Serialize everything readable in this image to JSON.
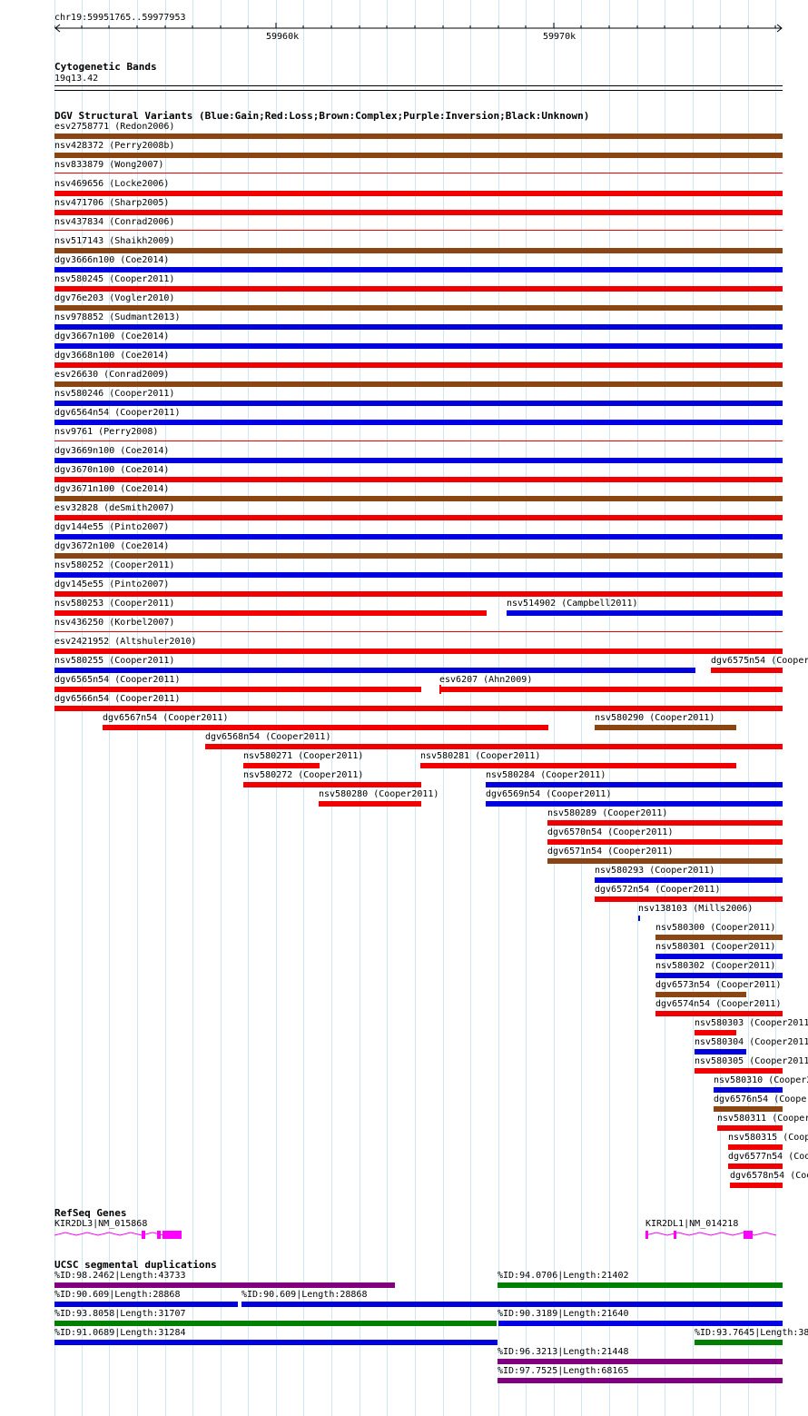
{
  "ruler": {
    "position": "chr19:59951765..59977953",
    "tick_labels": [
      "59960k",
      "59970k"
    ]
  },
  "cytoband": {
    "title": "Cytogenetic Bands",
    "band": "19q13.42"
  },
  "dgv": {
    "title": "DGV Structural Variants (Blue:Gain;Red:Loss;Brown:Complex;Purple:Inversion;Black:Unknown)",
    "colors": {
      "gain": "#0000e0",
      "loss": "#f00000",
      "complex": "#8b4513",
      "inversion": "#800080",
      "unknown": "#000000"
    },
    "features": [
      {
        "label": "esv2758771 (Redon2006)",
        "type": "complex"
      },
      {
        "label": "nsv428372 (Perry2008b)",
        "type": "complex"
      },
      {
        "label": "nsv833879 (Wong2007)",
        "type": "loss"
      },
      {
        "label": "nsv469656 (Locke2006)",
        "type": "loss"
      },
      {
        "label": "nsv471706 (Sharp2005)",
        "type": "loss"
      },
      {
        "label": "nsv437834 (Conrad2006)",
        "type": "loss"
      },
      {
        "label": "nsv517143 (Shaikh2009)",
        "type": "complex"
      },
      {
        "label": "dgv3666n100 (Coe2014)",
        "type": "gain"
      },
      {
        "label": "nsv580245 (Cooper2011)",
        "type": "loss"
      },
      {
        "label": "dgv76e203 (Vogler2010)",
        "type": "complex"
      },
      {
        "label": "nsv978852 (Sudmant2013)",
        "type": "gain"
      },
      {
        "label": "dgv3667n100 (Coe2014)",
        "type": "gain"
      },
      {
        "label": "dgv3668n100 (Coe2014)",
        "type": "loss"
      },
      {
        "label": "esv26630 (Conrad2009)",
        "type": "complex"
      },
      {
        "label": "nsv580246 (Cooper2011)",
        "type": "gain"
      },
      {
        "label": "dgv6564n54 (Cooper2011)",
        "type": "gain"
      },
      {
        "label": "nsv9761 (Perry2008)",
        "type": "loss"
      },
      {
        "label": "dgv3669n100 (Coe2014)",
        "type": "gain"
      },
      {
        "label": "dgv3670n100 (Coe2014)",
        "type": "loss"
      },
      {
        "label": "dgv3671n100 (Coe2014)",
        "type": "complex"
      },
      {
        "label": "esv32828 (deSmith2007)",
        "type": "loss"
      },
      {
        "label": "dgv144e55 (Pinto2007)",
        "type": "gain"
      },
      {
        "label": "dgv3672n100 (Coe2014)",
        "type": "complex"
      },
      {
        "label": "nsv580252 (Cooper2011)",
        "type": "gain"
      },
      {
        "label": "dgv145e55 (Pinto2007)",
        "type": "loss"
      },
      {
        "label": "nsv580253 (Cooper2011)",
        "type": "loss"
      },
      {
        "label": "nsv514902 (Campbell2011)",
        "type": "gain"
      },
      {
        "label": "nsv436250 (Korbel2007)",
        "type": "loss"
      },
      {
        "label": "esv2421952 (Altshuler2010)",
        "type": "loss"
      },
      {
        "label": "nsv580255 (Cooper2011)",
        "type": "gain"
      },
      {
        "label": "dgv6575n54 (Cooper",
        "type": "loss"
      },
      {
        "label": "dgv6565n54 (Cooper2011)",
        "type": "loss"
      },
      {
        "label": "esv6207 (Ahn2009)",
        "type": "loss"
      },
      {
        "label": "dgv6566n54 (Cooper2011)",
        "type": "loss"
      },
      {
        "label": "dgv6567n54 (Cooper2011)",
        "type": "loss"
      },
      {
        "label": "nsv580290 (Cooper2011)",
        "type": "complex"
      },
      {
        "label": "dgv6568n54 (Cooper2011)",
        "type": "loss"
      },
      {
        "label": "nsv580271 (Cooper2011)",
        "type": "loss"
      },
      {
        "label": "nsv580281 (Cooper2011)",
        "type": "loss"
      },
      {
        "label": "nsv580272 (Cooper2011)",
        "type": "loss"
      },
      {
        "label": "nsv580284 (Cooper2011)",
        "type": "gain"
      },
      {
        "label": "nsv580280 (Cooper2011)",
        "type": "loss"
      },
      {
        "label": "dgv6569n54 (Cooper2011)",
        "type": "gain"
      },
      {
        "label": "nsv580289 (Cooper2011)",
        "type": "loss"
      },
      {
        "label": "dgv6570n54 (Cooper2011)",
        "type": "loss"
      },
      {
        "label": "dgv6571n54 (Cooper2011)",
        "type": "complex"
      },
      {
        "label": "nsv580293 (Cooper2011)",
        "type": "gain"
      },
      {
        "label": "dgv6572n54 (Cooper2011)",
        "type": "loss"
      },
      {
        "label": "nsv138103 (Mills2006)",
        "type": "gain"
      },
      {
        "label": "nsv580300 (Cooper2011)",
        "type": "complex"
      },
      {
        "label": "nsv580301 (Cooper2011)",
        "type": "gain"
      },
      {
        "label": "nsv580302 (Cooper2011)",
        "type": "gain"
      },
      {
        "label": "dgv6573n54 (Cooper2011)",
        "type": "complex"
      },
      {
        "label": "dgv6574n54 (Cooper2011)",
        "type": "loss"
      },
      {
        "label": "nsv580303 (Cooper2011",
        "type": "loss"
      },
      {
        "label": "nsv580304 (Cooper2011",
        "type": "gain"
      },
      {
        "label": "nsv580305 (Cooper2011",
        "type": "loss"
      },
      {
        "label": "nsv580310 (Cooper2",
        "type": "gain"
      },
      {
        "label": "dgv6576n54 (Cooper",
        "type": "complex"
      },
      {
        "label": "nsv580311 (Cooper",
        "type": "loss"
      },
      {
        "label": "nsv580315 (Coop",
        "type": "loss"
      },
      {
        "label": "dgv6577n54 (Coo",
        "type": "loss"
      },
      {
        "label": "dgv6578n54 (Coo",
        "type": "loss"
      }
    ]
  },
  "refseq": {
    "title": "RefSeq Genes",
    "color": "#ff00ff",
    "genes": [
      {
        "label": "KIR2DL3|NM_015868"
      },
      {
        "label": "KIR2DL1|NM_014218"
      }
    ]
  },
  "segdups": {
    "title": "UCSC segmental duplications",
    "colors": {
      "purple": "#800080",
      "green": "#008000",
      "blue": "#0000e0"
    },
    "features": [
      {
        "label": "%ID:98.2462|Length:43733",
        "color": "purple"
      },
      {
        "label": "%ID:94.0706|Length:21402",
        "color": "green"
      },
      {
        "label": "%ID:90.609|Length:28868",
        "color": "blue"
      },
      {
        "label": "%ID:90.609|Length:28868",
        "color": "blue"
      },
      {
        "label": "%ID:93.8058|Length:31707",
        "color": "green"
      },
      {
        "label": "%ID:90.3189|Length:21640",
        "color": "blue"
      },
      {
        "label": "%ID:91.0689|Length:31284",
        "color": "blue"
      },
      {
        "label": "%ID:93.7645|Length:38",
        "color": "green"
      },
      {
        "label": "%ID:96.3213|Length:21448",
        "color": "purple"
      },
      {
        "label": "%ID:97.7525|Length:68165",
        "color": "purple"
      }
    ]
  }
}
